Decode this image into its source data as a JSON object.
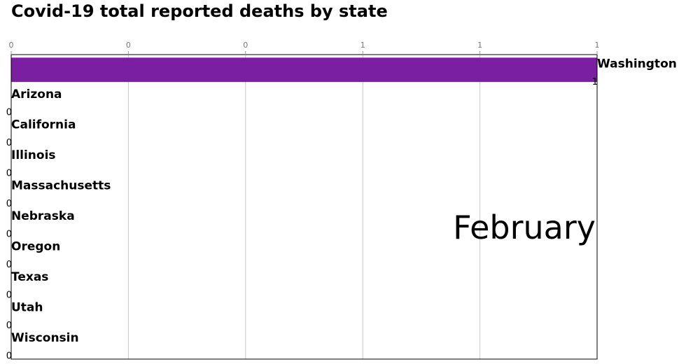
{
  "title": "Covid-19 total reported deaths by state",
  "chart_data": {
    "type": "bar",
    "orientation": "horizontal",
    "title": "Covid-19 total reported deaths by state",
    "period_label": "February",
    "categories": [
      "Washington",
      "Arizona",
      "California",
      "Illinois",
      "Massachusetts",
      "Nebraska",
      "Oregon",
      "Texas",
      "Utah",
      "Wisconsin"
    ],
    "values": [
      1,
      0,
      0,
      0,
      0,
      0,
      0,
      0,
      0,
      0
    ],
    "value_labels": [
      "1",
      "0",
      "0",
      "0",
      "0",
      "0",
      "0",
      "0",
      "0",
      "0"
    ],
    "bar_color": "#7b1fa2",
    "xlim": [
      0,
      1
    ],
    "x_tick_labels": [
      "0",
      "0",
      "0",
      "1",
      "1",
      "1"
    ],
    "x_axis_position": "top",
    "grid": true
  }
}
